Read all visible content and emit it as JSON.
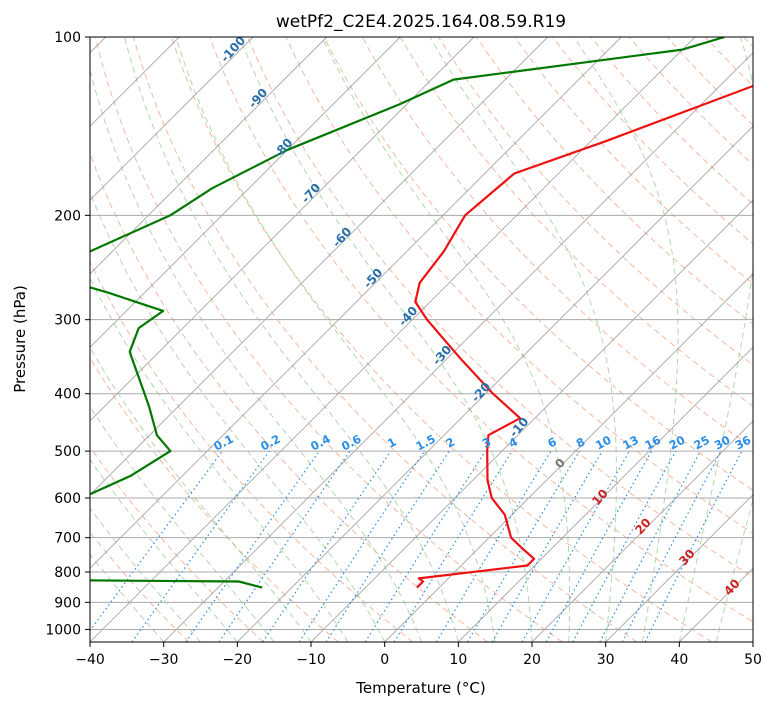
{
  "chart_data": {
    "type": "line",
    "subtype": "skew-t log-p diagram",
    "title": "wetPf2_C2E4.2025.164.08.59.R19",
    "xlabel": "Temperature (°C)",
    "ylabel": "Pressure (hPa)",
    "xlim": [
      -40,
      50
    ],
    "ylim": [
      1050,
      100
    ],
    "y_scale": "log",
    "grid": true,
    "x_ticks": [
      -40,
      -30,
      -20,
      -10,
      0,
      10,
      20,
      30,
      40,
      50
    ],
    "y_ticks": [
      100,
      200,
      300,
      400,
      500,
      600,
      700,
      800,
      900,
      1000
    ],
    "series": [
      {
        "role": "temperature",
        "color": "#ee1111",
        "points": [
          [
            -18,
            100
          ],
          [
            -25,
            120
          ],
          [
            -38,
            150
          ],
          [
            -46,
            170
          ],
          [
            -47,
            200
          ],
          [
            -45,
            230
          ],
          [
            -44,
            260
          ],
          [
            -42,
            280
          ],
          [
            -38,
            300
          ],
          [
            -28,
            350
          ],
          [
            -19,
            400
          ],
          [
            -12,
            440
          ],
          [
            -14,
            470
          ],
          [
            -12,
            500
          ],
          [
            -8,
            560
          ],
          [
            -5,
            600
          ],
          [
            -1,
            640
          ],
          [
            3,
            700
          ],
          [
            6,
            730
          ],
          [
            9,
            760
          ],
          [
            9,
            780
          ],
          [
            -4,
            820
          ],
          [
            -3,
            830
          ],
          [
            -3,
            850
          ]
        ]
      },
      {
        "role": "dewpoint",
        "color": "#007700",
        "points": [
          [
            -36,
            100
          ],
          [
            -40,
            105
          ],
          [
            -67,
            118
          ],
          [
            -71,
            130
          ],
          [
            -80,
            155
          ],
          [
            -85,
            180
          ],
          [
            -87,
            200
          ],
          [
            -93,
            230
          ],
          [
            -100,
            245
          ],
          [
            -85,
            270
          ],
          [
            -75,
            290
          ],
          [
            -76,
            310
          ],
          [
            -74,
            340
          ],
          [
            -70,
            370
          ],
          [
            -64,
            420
          ],
          [
            -59,
            470
          ],
          [
            -55,
            500
          ],
          [
            -57,
            550
          ],
          [
            -60,
            590
          ],
          [
            -85,
            820
          ],
          [
            -28,
            830
          ],
          [
            -24,
            850
          ]
        ]
      }
    ],
    "line_families": {
      "isotherms": {
        "color": "#888888",
        "step_c": 10
      },
      "dry_adiabats": {
        "color": "#f2a182"
      },
      "moist_adiabats": {
        "color": "#7bbf7b"
      },
      "mixing_ratio": {
        "color": "#2a8ee8"
      }
    },
    "annotations": {
      "mixing_ratio_labels": [
        "0.1",
        "0.2",
        "0.4",
        "0.6",
        "1",
        "1.5",
        "2",
        "3",
        "4",
        "6",
        "8",
        "10",
        "13",
        "16",
        "20",
        "25",
        "30",
        "36"
      ],
      "isotherm_labels_cold": [
        "-100",
        "-90",
        "-80",
        "-70",
        "-60",
        "-50",
        "-40",
        "-30",
        "-20",
        "-10"
      ],
      "isotherm_label_zero": "0",
      "isotherm_labels_warm": [
        "10",
        "20",
        "30",
        "40"
      ]
    }
  }
}
